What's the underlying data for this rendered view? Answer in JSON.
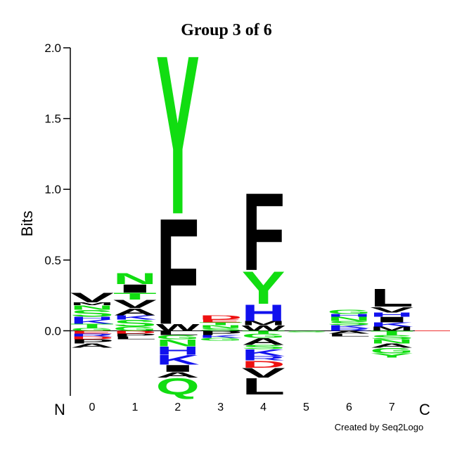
{
  "chart_data": {
    "type": "logo",
    "title": "Group 3 of 6",
    "y_label": "Bits",
    "x_start_label": "N",
    "x_end_label": "C",
    "footer": "Created by Seq2Logo",
    "categories": [
      "0",
      "1",
      "2",
      "3",
      "4",
      "5",
      "6",
      "7"
    ],
    "ylim": [
      -0.46,
      2.0
    ],
    "yticks": [
      {
        "value": 0,
        "label": "0.0"
      },
      0.5,
      {
        "value": 1,
        "label": "1.0"
      },
      1.5,
      {
        "value": 2,
        "label": "2.0"
      }
    ],
    "letter_colors": {
      "A": "#000000",
      "V": "#000000",
      "L": "#000000",
      "I": "#000000",
      "M": "#000000",
      "F": "#000000",
      "W": "#000000",
      "P": "#000000",
      "G": "#11dd11",
      "S": "#11dd11",
      "T": "#11dd11",
      "Y": "#11dd11",
      "C": "#11dd11",
      "N": "#11dd11",
      "Q": "#11dd11",
      "K": "#1111ee",
      "R": "#1111ee",
      "H": "#1111ee",
      "D": "#ee1111",
      "E": "#ee1111"
    },
    "positions": [
      {
        "above": [
          {
            "letter": "G",
            "value": 0.02
          },
          {
            "letter": "T",
            "value": 0.03
          },
          {
            "letter": "K",
            "value": 0.03
          },
          {
            "letter": "H",
            "value": 0.02
          },
          {
            "letter": "S",
            "value": 0.05
          },
          {
            "letter": "N",
            "value": 0.03
          },
          {
            "letter": "M",
            "value": 0.02
          },
          {
            "letter": "V",
            "value": 0.07
          }
        ],
        "below": [
          {
            "letter": "E",
            "value": -0.02
          },
          {
            "letter": "R",
            "value": -0.02
          },
          {
            "letter": "D",
            "value": -0.02
          },
          {
            "letter": "P",
            "value": -0.03
          },
          {
            "letter": "A",
            "value": -0.03
          }
        ]
      },
      {
        "above": [
          {
            "letter": "G",
            "value": 0.03
          },
          {
            "letter": "S",
            "value": 0.05
          },
          {
            "letter": "K",
            "value": 0.03
          },
          {
            "letter": "A",
            "value": 0.05
          },
          {
            "letter": "V",
            "value": 0.06
          },
          {
            "letter": "T",
            "value": 0.05
          },
          {
            "letter": "I",
            "value": 0.06
          },
          {
            "letter": "N",
            "value": 0.08
          }
        ],
        "below": [
          {
            "letter": "D",
            "value": -0.02
          },
          {
            "letter": "P",
            "value": -0.02
          },
          {
            "letter": "L",
            "value": -0.02
          }
        ]
      },
      {
        "above": [
          {
            "letter": "W",
            "value": 0.05
          },
          {
            "letter": "F",
            "value": 0.78
          },
          {
            "letter": "Y",
            "value": 1.17
          }
        ],
        "below": [
          {
            "letter": "L",
            "value": -0.03
          },
          {
            "letter": "G",
            "value": -0.03
          },
          {
            "letter": "N",
            "value": -0.05
          },
          {
            "letter": "H",
            "value": -0.06
          },
          {
            "letter": "K",
            "value": -0.07
          },
          {
            "letter": "I",
            "value": -0.05
          },
          {
            "letter": "A",
            "value": -0.04
          },
          {
            "letter": "Q",
            "value": -0.12
          }
        ]
      },
      {
        "above": [
          {
            "letter": "S",
            "value": 0.02
          },
          {
            "letter": "N",
            "value": 0.02
          },
          {
            "letter": "T",
            "value": 0.02
          },
          {
            "letter": "E",
            "value": 0.02
          },
          {
            "letter": "D",
            "value": 0.03
          }
        ],
        "below": [
          {
            "letter": "P",
            "value": -0.03
          },
          {
            "letter": "K",
            "value": -0.02
          },
          {
            "letter": "G",
            "value": -0.02
          }
        ]
      },
      {
        "above": [
          {
            "letter": "W",
            "value": 0.04
          },
          {
            "letter": "M",
            "value": 0.03
          },
          {
            "letter": "H",
            "value": 0.12
          },
          {
            "letter": "Y",
            "value": 0.24
          },
          {
            "letter": "F",
            "value": 0.57
          }
        ],
        "below": [
          {
            "letter": "T",
            "value": -0.02
          },
          {
            "letter": "G",
            "value": -0.03
          },
          {
            "letter": "A",
            "value": -0.05
          },
          {
            "letter": "S",
            "value": -0.03
          },
          {
            "letter": "K",
            "value": -0.05
          },
          {
            "letter": "R",
            "value": -0.03
          },
          {
            "letter": "D",
            "value": -0.05
          },
          {
            "letter": "V",
            "value": -0.07
          },
          {
            "letter": "L",
            "value": -0.12
          }
        ]
      },
      {
        "above": [],
        "below": [
          {
            "letter": "S",
            "value": -0.01
          }
        ]
      },
      {
        "above": [
          {
            "letter": "R",
            "value": 0.02
          },
          {
            "letter": "K",
            "value": 0.02
          },
          {
            "letter": "S",
            "value": 0.03
          },
          {
            "letter": "N",
            "value": 0.03
          },
          {
            "letter": "H",
            "value": 0.02
          },
          {
            "letter": "G",
            "value": 0.03
          }
        ],
        "below": [
          {
            "letter": "A",
            "value": -0.02
          },
          {
            "letter": "L",
            "value": -0.02
          }
        ]
      },
      {
        "above": [
          {
            "letter": "M",
            "value": 0.03
          },
          {
            "letter": "K",
            "value": 0.03
          },
          {
            "letter": "I",
            "value": 0.04
          },
          {
            "letter": "H",
            "value": 0.03
          },
          {
            "letter": "V",
            "value": 0.04
          },
          {
            "letter": "L",
            "value": 0.13
          }
        ],
        "below": [
          {
            "letter": "T",
            "value": -0.03
          },
          {
            "letter": "S",
            "value": -0.03
          },
          {
            "letter": "N",
            "value": -0.03
          },
          {
            "letter": "A",
            "value": -0.03
          },
          {
            "letter": "G",
            "value": -0.04
          },
          {
            "letter": "Y",
            "value": -0.03
          }
        ]
      }
    ]
  }
}
